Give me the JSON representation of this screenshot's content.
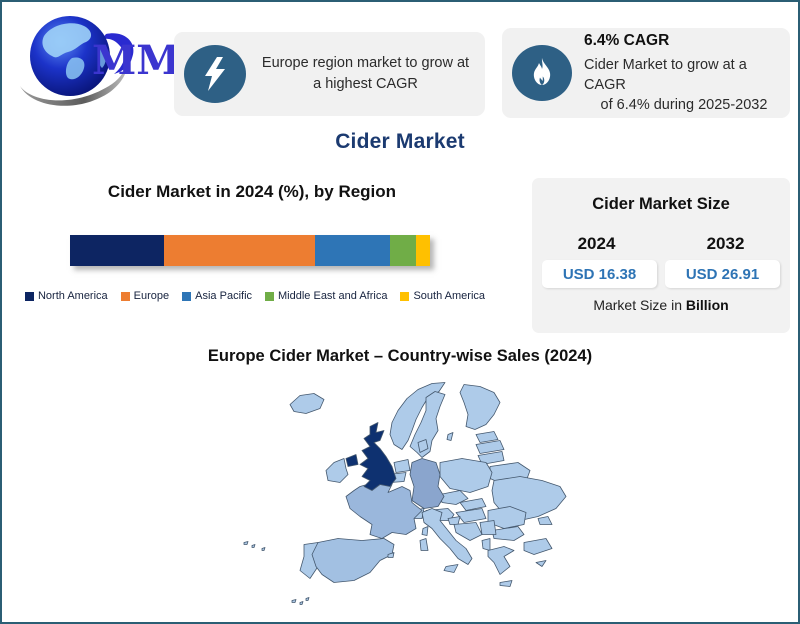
{
  "page": {
    "border_color": "#2b5e74",
    "background": "#ffffff"
  },
  "logo": {
    "text": "MMR",
    "text_color": "#3b35cf",
    "globe_color": "#1b30d8"
  },
  "callouts": [
    {
      "icon": "lightning-icon",
      "line1": "Europe region market to grow at",
      "line2": "a highest CAGR"
    },
    {
      "icon": "flame-icon",
      "title": "6.4% CAGR",
      "line1": "Cider Market to grow at a CAGR",
      "line2": "of 6.4% during 2025-2032"
    }
  ],
  "main_title": "Cider Market",
  "chart_data": {
    "type": "bar",
    "stacked": true,
    "orientation": "horizontal",
    "title": "Cider Market in 2024 (%), by Region",
    "categories": [
      "North America",
      "Europe",
      "Asia Pacific",
      "Middle East and Africa",
      "South America"
    ],
    "values": [
      26,
      42,
      21,
      7,
      4
    ],
    "unit": "%",
    "colors": [
      "#0d2562",
      "#ed7d31",
      "#2e75b6",
      "#70ad47",
      "#ffc000"
    ],
    "legend_position": "bottom",
    "xlim": [
      0,
      100
    ]
  },
  "market_size_panel": {
    "title": "Cider Market Size",
    "years": [
      "2024",
      "2032"
    ],
    "values": [
      "USD 16.38",
      "USD 26.91"
    ],
    "value_color": "#2e74b5",
    "footnote_prefix": "Market Size in ",
    "footnote_bold": "Billion"
  },
  "map_section": {
    "title": "Europe Cider Market – Country-wise Sales (2024)",
    "highlight_country": "United Kingdom",
    "colors": {
      "highlight": "#0e3170",
      "medium": "#8aa5cd",
      "medium2": "#9ab7dc",
      "medium3": "#a2c0e2",
      "light": "#aecbe9",
      "border": "#44586e"
    },
    "country_shading": {
      "united-kingdom": "highlight",
      "germany": "medium",
      "france": "medium2",
      "spain": "medium3",
      "others": "light"
    }
  }
}
